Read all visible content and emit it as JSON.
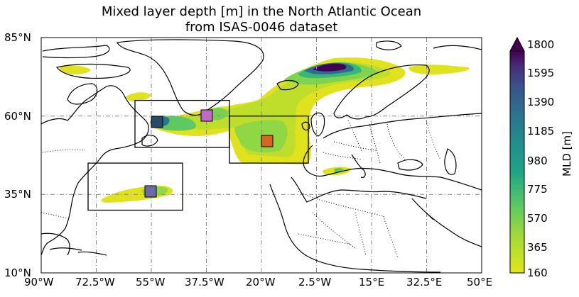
{
  "figure": {
    "title_line1": "Mixed layer depth [m] in the North Atlantic Ocean",
    "title_line2": "from ISAS-0046 dataset"
  },
  "map": {
    "lat_ticks": [
      "85°N",
      "60°N",
      "35°N",
      "10°N"
    ],
    "lon_ticks": [
      "90°W",
      "72.5°W",
      "55°W",
      "37.5°W",
      "20°W",
      "2.5°W",
      "15°E",
      "32.5°E",
      "50°E"
    ],
    "extent": {
      "lon_min": -90,
      "lon_max": 50,
      "lat_min": 10,
      "lat_max": 85
    },
    "regions": [
      {
        "name": "Labrador/Irminger box",
        "lon": [
          -60,
          -30
        ],
        "lat": [
          50,
          65
        ],
        "marker_color": "#c06ac8",
        "marker_lon": -37.5,
        "marker_lat": 60
      },
      {
        "name": "Labrador marker",
        "marker_color": "#2a4a6a",
        "marker_lon": -52,
        "marker_lat": 58.5
      },
      {
        "name": "Northeast Atlantic box",
        "lon": [
          -30,
          -5
        ],
        "lat": [
          45,
          60
        ],
        "marker_color": "#d9661f",
        "marker_lon": -19,
        "marker_lat": 51.5
      },
      {
        "name": "Subtropical box",
        "lon": [
          -75,
          -45
        ],
        "lat": [
          30,
          45
        ],
        "marker_color": "#6b6aa8",
        "marker_lon": -55,
        "marker_lat": 36
      }
    ]
  },
  "colorbar": {
    "label": "MLD [m]",
    "ticks": [
      "1800",
      "1595",
      "1390",
      "1185",
      "980",
      "775",
      "570",
      "365",
      "160"
    ],
    "range": [
      160,
      1800
    ],
    "colormap": "viridis_r",
    "extend": "max"
  }
}
